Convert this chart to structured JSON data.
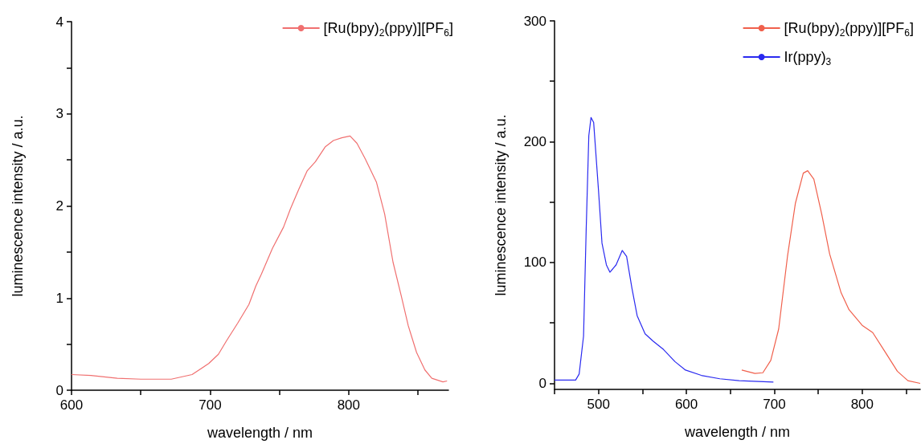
{
  "chart_data": [
    {
      "type": "line",
      "xlabel": "wavelength / nm",
      "ylabel": "luminescence intensity / a.u.",
      "xlim": [
        600,
        872
      ],
      "ylim": [
        0,
        4
      ],
      "xticks": [
        600,
        {
          "value": 650,
          "label": null
        },
        700,
        {
          "value": 750,
          "label": null
        },
        800,
        {
          "value": 850,
          "label": null
        }
      ],
      "yticks": [
        0,
        {
          "value": 0.5,
          "label": null
        },
        1,
        {
          "value": 1.5,
          "label": null
        },
        2,
        {
          "value": 2.5,
          "label": null
        },
        3,
        {
          "value": 3.5,
          "label": null
        },
        4
      ],
      "legend": "top right",
      "grid": false,
      "line_style": "solid",
      "marker": "none",
      "series": [
        {
          "name": "[Ru(bpy)$_{2}$(ppy)][PF$_{6}$]",
          "color": "#f07070",
          "x": [
            600,
            614,
            633,
            650,
            672,
            687,
            699,
            706,
            712,
            720,
            728,
            733,
            737,
            745,
            753,
            758,
            764,
            770,
            776,
            783,
            789,
            795,
            801,
            806,
            812,
            820,
            826,
            832,
            838,
            843,
            849,
            855,
            860,
            868,
            871
          ],
          "values": [
            0.17,
            0.16,
            0.13,
            0.12,
            0.12,
            0.17,
            0.29,
            0.39,
            0.54,
            0.73,
            0.93,
            1.13,
            1.26,
            1.54,
            1.77,
            1.97,
            2.18,
            2.38,
            2.48,
            2.64,
            2.71,
            2.74,
            2.76,
            2.68,
            2.51,
            2.26,
            1.91,
            1.39,
            1.02,
            0.7,
            0.41,
            0.22,
            0.13,
            0.09,
            0.1
          ]
        }
      ]
    },
    {
      "type": "line",
      "xlabel": "wavelength / nm",
      "ylabel": "luminescence intensity / a.u.",
      "xlim": [
        450,
        866
      ],
      "ylim": [
        -5,
        300
      ],
      "xticks": [
        {
          "value": 450,
          "label": null
        },
        500,
        {
          "value": 550,
          "label": null
        },
        600,
        {
          "value": 650,
          "label": null
        },
        700,
        {
          "value": 750,
          "label": null
        },
        800,
        {
          "value": 850,
          "label": null
        }
      ],
      "yticks": [
        0,
        {
          "value": 50,
          "label": null
        },
        100,
        {
          "value": 150,
          "label": null
        },
        200,
        {
          "value": 250,
          "label": null
        },
        300
      ],
      "legend": "top right",
      "grid": false,
      "line_style": "solid",
      "marker": "none",
      "series": [
        {
          "name": "[Ru(bpy)$_{2}$(ppy)][PF$_{6}$]",
          "color": "#f0604c",
          "x": [
            663,
            678,
            687,
            696,
            705,
            715,
            724,
            733,
            738,
            745,
            754,
            763,
            776,
            785,
            800,
            812,
            827,
            840,
            852,
            866
          ],
          "values": [
            11,
            8.2,
            8.8,
            19,
            45,
            105,
            149,
            174,
            176,
            169,
            140,
            107,
            75,
            61,
            48,
            42,
            25,
            10,
            2.2,
            0
          ]
        },
        {
          "name": "Ir(ppy)$_{3}$",
          "color": "#2a2af0",
          "x": [
            450,
            474,
            478,
            483,
            486,
            489,
            491.5,
            494.5,
            500,
            504,
            509,
            513,
            520,
            527,
            532,
            538,
            544,
            553,
            562,
            574,
            587,
            599,
            617,
            638,
            660,
            699
          ],
          "values": [
            2.7,
            2.7,
            7.7,
            39,
            127,
            205,
            220,
            216,
            160,
            116,
            98,
            92,
            98,
            110,
            105,
            79,
            56,
            41,
            35,
            28,
            18,
            11,
            6.6,
            3.8,
            2.2,
            1.1
          ]
        }
      ]
    }
  ]
}
